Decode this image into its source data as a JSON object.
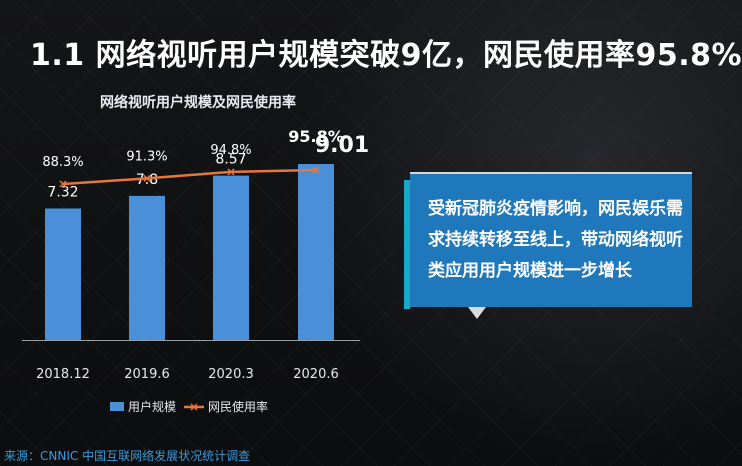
{
  "headline": "1.1 网络视听用户规模突破9亿，网民使用率95.8%",
  "callout_text": "受新冠肺炎疫情影响，网民娱乐需求持续转移至线上，带动网络视听类应用用户规模进一步增长",
  "source": "来源：CNNIC 中国互联网络发展状况统计调查",
  "colors": {
    "bar": "#4a90d9",
    "line": "#e8763a",
    "callout": "#1f78bc",
    "accent": "#18a9c9"
  },
  "chart_data": {
    "type": "bar",
    "title": "网络视听用户规模及网民使用率",
    "categories": [
      "2018.12",
      "2019.6",
      "2020.3",
      "2020.6"
    ],
    "series": [
      {
        "name": "用户规模",
        "type": "bar",
        "values": [
          7.32,
          7.8,
          8.57,
          9.01
        ],
        "labels": [
          "7.32",
          "7.8",
          "8.57",
          "9.01"
        ]
      },
      {
        "name": "网民使用率",
        "type": "line",
        "values": [
          88.3,
          91.3,
          94.8,
          95.8
        ],
        "labels": [
          "88.3%",
          "91.3%",
          "94.8%",
          "95.8%"
        ]
      }
    ],
    "legend_position": "bottom",
    "grid": false
  }
}
